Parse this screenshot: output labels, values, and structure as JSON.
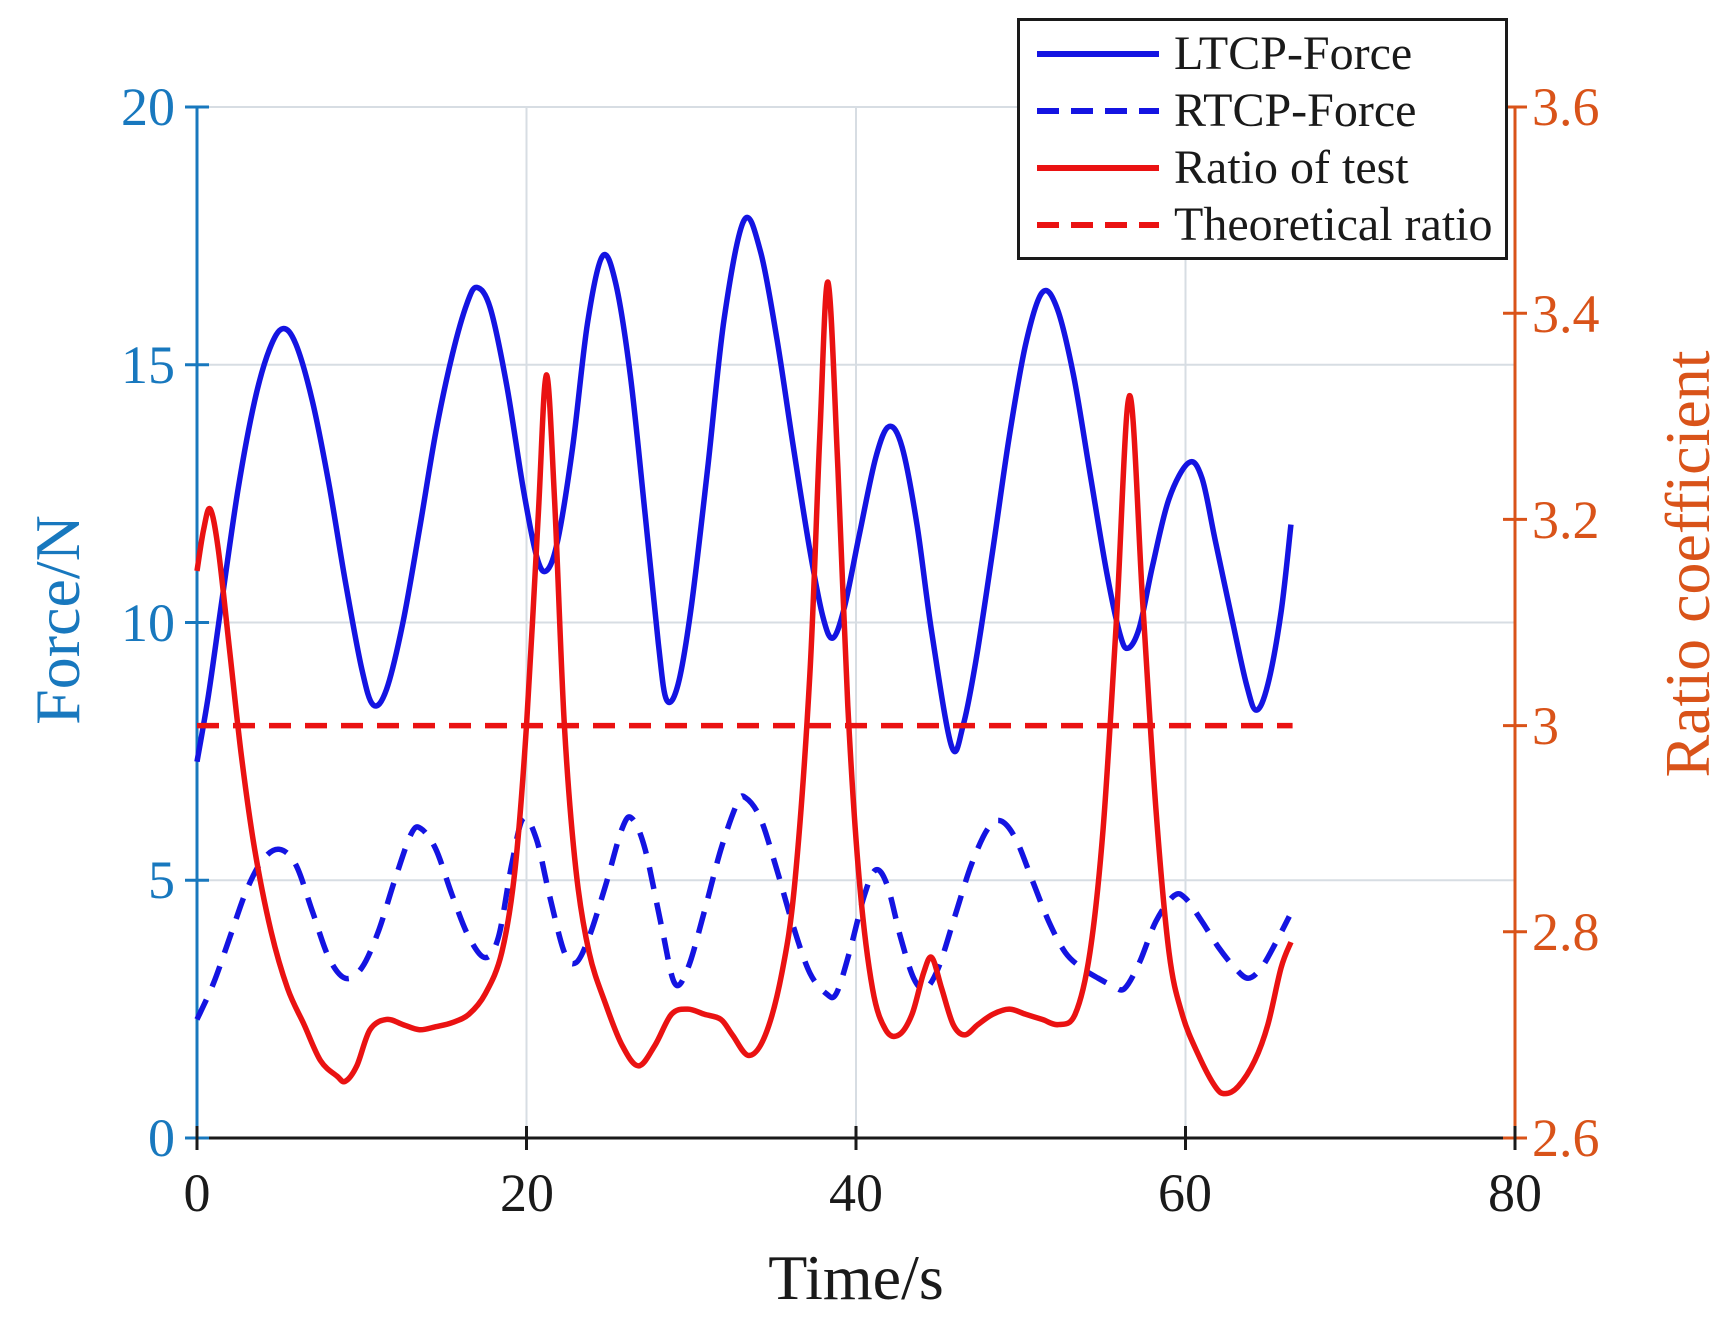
{
  "figure_title": "",
  "axis_labels": {
    "x": "Time/s",
    "y_left": "Force/N",
    "y_right": "Ratio coefficient"
  },
  "colors": {
    "ltcp_line": "#1414e2",
    "rtcp_line": "#1414e2",
    "ratio_line": "#ea1212",
    "theoretical_line": "#ea1212",
    "axis_left": "#1878be",
    "axis_right": "#d95319",
    "axis_bottom": "#1a1a1a",
    "grid": "#d7dde3",
    "background": "#ffffff"
  },
  "legend": {
    "entries": [
      {
        "label": "LTCP-Force",
        "color": "#1414e2",
        "style": "solid"
      },
      {
        "label": "RTCP-Force",
        "color": "#1414e2",
        "style": "dashed"
      },
      {
        "label": "Ratio of test",
        "color": "#ea1212",
        "style": "solid"
      },
      {
        "label": "Theoretical ratio",
        "color": "#ea1212",
        "style": "dashed"
      }
    ]
  },
  "chart_data": {
    "type": "line",
    "title": "",
    "xlabel": "Time/s",
    "ylabel_left": "Force/N",
    "ylabel_right": "Ratio coefficient",
    "grid": true,
    "legend_position": "top-right",
    "x_axis": {
      "min": 0,
      "max": 80,
      "ticks": [
        0,
        20,
        40,
        60,
        80
      ],
      "tick_labels": [
        "0",
        "20",
        "40",
        "60",
        "80"
      ]
    },
    "y_left_axis": {
      "min": 0,
      "max": 20,
      "ticks": [
        0,
        5,
        10,
        15,
        20
      ],
      "tick_labels": [
        "0",
        "5",
        "10",
        "15",
        "20"
      ]
    },
    "y_right_axis": {
      "min": 2.6,
      "max": 3.6,
      "ticks": [
        2.6,
        2.8,
        3.0,
        3.2,
        3.4,
        3.6
      ],
      "tick_labels": [
        "2.6",
        "2.8",
        "3",
        "3.2",
        "3.4",
        "3.6"
      ]
    },
    "series": [
      {
        "name": "LTCP-Force",
        "axis": "left",
        "style": "solid",
        "color": "#1414e2",
        "points": [
          [
            0,
            7.3
          ],
          [
            0.7,
            8.6
          ],
          [
            1.5,
            10.4
          ],
          [
            2.5,
            12.6
          ],
          [
            3.5,
            14.3
          ],
          [
            4.4,
            15.3
          ],
          [
            5.2,
            15.7
          ],
          [
            6,
            15.4
          ],
          [
            7,
            14.3
          ],
          [
            8,
            12.7
          ],
          [
            9,
            10.8
          ],
          [
            10,
            9.1
          ],
          [
            10.7,
            8.4
          ],
          [
            11.5,
            8.7
          ],
          [
            12.5,
            10.0
          ],
          [
            13.5,
            11.8
          ],
          [
            14.5,
            13.7
          ],
          [
            15.5,
            15.2
          ],
          [
            16.4,
            16.2
          ],
          [
            17,
            16.5
          ],
          [
            17.8,
            16.1
          ],
          [
            18.8,
            14.6
          ],
          [
            19.8,
            12.6
          ],
          [
            20.6,
            11.3
          ],
          [
            21.2,
            11.0
          ],
          [
            21.9,
            11.6
          ],
          [
            22.8,
            13.4
          ],
          [
            23.7,
            15.8
          ],
          [
            24.6,
            17.1
          ],
          [
            25.4,
            16.6
          ],
          [
            26.3,
            14.8
          ],
          [
            27.2,
            12.1
          ],
          [
            28,
            9.6
          ],
          [
            28.5,
            8.5
          ],
          [
            29.2,
            8.8
          ],
          [
            30,
            10.3
          ],
          [
            31,
            13.0
          ],
          [
            32,
            15.9
          ],
          [
            33.2,
            17.8
          ],
          [
            34.2,
            17.2
          ],
          [
            35.2,
            15.5
          ],
          [
            36.2,
            13.4
          ],
          [
            37.2,
            11.4
          ],
          [
            38,
            10.1
          ],
          [
            38.6,
            9.7
          ],
          [
            39.3,
            10.3
          ],
          [
            40.2,
            11.7
          ],
          [
            41.2,
            13.2
          ],
          [
            42,
            13.8
          ],
          [
            42.8,
            13.4
          ],
          [
            43.7,
            11.9
          ],
          [
            44.6,
            9.8
          ],
          [
            45.8,
            7.6
          ],
          [
            46.5,
            8.0
          ],
          [
            47.3,
            9.3
          ],
          [
            48.3,
            11.4
          ],
          [
            49.3,
            13.6
          ],
          [
            50.3,
            15.4
          ],
          [
            51.3,
            16.4
          ],
          [
            52.2,
            16.1
          ],
          [
            53.2,
            14.8
          ],
          [
            54.2,
            12.9
          ],
          [
            55.2,
            11.0
          ],
          [
            56,
            9.8
          ],
          [
            56.5,
            9.5
          ],
          [
            57.2,
            9.9
          ],
          [
            58,
            11.1
          ],
          [
            59,
            12.4
          ],
          [
            60.2,
            13.1
          ],
          [
            61,
            12.8
          ],
          [
            61.8,
            11.6
          ],
          [
            62.8,
            10.1
          ],
          [
            63.7,
            8.8
          ],
          [
            64.3,
            8.3
          ],
          [
            65,
            8.8
          ],
          [
            65.8,
            10.2
          ],
          [
            66.4,
            11.9
          ]
        ]
      },
      {
        "name": "RTCP-Force",
        "axis": "left",
        "style": "dashed",
        "color": "#1414e2",
        "points": [
          [
            0,
            2.3
          ],
          [
            1,
            3.0
          ],
          [
            2,
            3.9
          ],
          [
            3,
            4.8
          ],
          [
            4,
            5.4
          ],
          [
            5,
            5.6
          ],
          [
            6,
            5.3
          ],
          [
            7,
            4.4
          ],
          [
            8,
            3.5
          ],
          [
            9,
            3.1
          ],
          [
            10,
            3.3
          ],
          [
            11,
            4.0
          ],
          [
            12,
            5.0
          ],
          [
            13,
            5.9
          ],
          [
            13.6,
            6.0
          ],
          [
            14.5,
            5.6
          ],
          [
            15.5,
            4.7
          ],
          [
            16.5,
            3.9
          ],
          [
            17.5,
            3.5
          ],
          [
            18.3,
            3.9
          ],
          [
            19.1,
            5.3
          ],
          [
            19.8,
            6.2
          ],
          [
            20.6,
            5.8
          ],
          [
            21.4,
            4.7
          ],
          [
            22.3,
            3.6
          ],
          [
            23,
            3.4
          ],
          [
            23.8,
            3.9
          ],
          [
            24.8,
            4.9
          ],
          [
            25.8,
            6.0
          ],
          [
            26.4,
            6.2
          ],
          [
            27.2,
            5.6
          ],
          [
            28.2,
            4.1
          ],
          [
            29,
            3.0
          ],
          [
            29.8,
            3.3
          ],
          [
            30.8,
            4.4
          ],
          [
            31.8,
            5.6
          ],
          [
            32.8,
            6.5
          ],
          [
            33.3,
            6.6
          ],
          [
            34.2,
            6.2
          ],
          [
            35.2,
            5.2
          ],
          [
            36.2,
            4.1
          ],
          [
            37.2,
            3.2
          ],
          [
            38.2,
            2.8
          ],
          [
            38.8,
            2.8
          ],
          [
            39.6,
            3.6
          ],
          [
            40.5,
            4.7
          ],
          [
            41.2,
            5.2
          ],
          [
            41.9,
            4.9
          ],
          [
            42.7,
            3.9
          ],
          [
            43.5,
            3.1
          ],
          [
            44.2,
            2.9
          ],
          [
            45,
            3.3
          ],
          [
            46,
            4.3
          ],
          [
            47,
            5.3
          ],
          [
            48,
            6.0
          ],
          [
            48.8,
            6.15
          ],
          [
            49.7,
            5.8
          ],
          [
            50.7,
            5.0
          ],
          [
            51.7,
            4.2
          ],
          [
            52.7,
            3.6
          ],
          [
            53.7,
            3.3
          ],
          [
            54.7,
            3.1
          ],
          [
            55.6,
            2.95
          ],
          [
            56.3,
            2.9
          ],
          [
            57.2,
            3.4
          ],
          [
            58.2,
            4.2
          ],
          [
            59.3,
            4.7
          ],
          [
            60,
            4.65
          ],
          [
            61,
            4.2
          ],
          [
            62,
            3.7
          ],
          [
            63,
            3.3
          ],
          [
            63.8,
            3.1
          ],
          [
            64.6,
            3.3
          ],
          [
            65.5,
            3.8
          ],
          [
            66.3,
            4.3
          ]
        ]
      },
      {
        "name": "Ratio of test",
        "axis": "right",
        "style": "solid",
        "color": "#ea1212",
        "points": [
          [
            0,
            3.15
          ],
          [
            0.4,
            3.19
          ],
          [
            0.8,
            3.21
          ],
          [
            1.3,
            3.17
          ],
          [
            2,
            3.07
          ],
          [
            2.7,
            2.97
          ],
          [
            3.5,
            2.88
          ],
          [
            4.5,
            2.8
          ],
          [
            5.5,
            2.745
          ],
          [
            6.5,
            2.71
          ],
          [
            7.5,
            2.675
          ],
          [
            8.5,
            2.66
          ],
          [
            9,
            2.655
          ],
          [
            9.7,
            2.67
          ],
          [
            10.5,
            2.705
          ],
          [
            11.5,
            2.715
          ],
          [
            12.5,
            2.71
          ],
          [
            13.5,
            2.705
          ],
          [
            14.5,
            2.708
          ],
          [
            15.5,
            2.712
          ],
          [
            16.5,
            2.72
          ],
          [
            17.5,
            2.74
          ],
          [
            18.5,
            2.78
          ],
          [
            19.3,
            2.86
          ],
          [
            20,
            3.0
          ],
          [
            20.7,
            3.2
          ],
          [
            21.2,
            3.34
          ],
          [
            21.7,
            3.22
          ],
          [
            22.3,
            3.0
          ],
          [
            23,
            2.86
          ],
          [
            23.8,
            2.78
          ],
          [
            24.8,
            2.73
          ],
          [
            25.8,
            2.69
          ],
          [
            26.8,
            2.67
          ],
          [
            27.8,
            2.69
          ],
          [
            28.8,
            2.72
          ],
          [
            29.8,
            2.725
          ],
          [
            30.8,
            2.72
          ],
          [
            31.8,
            2.715
          ],
          [
            32.5,
            2.7
          ],
          [
            33.5,
            2.68
          ],
          [
            34.5,
            2.7
          ],
          [
            35.5,
            2.76
          ],
          [
            36.3,
            2.85
          ],
          [
            37.2,
            3.05
          ],
          [
            37.8,
            3.28
          ],
          [
            38.3,
            3.43
          ],
          [
            38.9,
            3.25
          ],
          [
            39.5,
            3.02
          ],
          [
            40.2,
            2.85
          ],
          [
            41,
            2.745
          ],
          [
            41.8,
            2.705
          ],
          [
            42.6,
            2.7
          ],
          [
            43.4,
            2.72
          ],
          [
            44.1,
            2.76
          ],
          [
            44.6,
            2.775
          ],
          [
            45.2,
            2.745
          ],
          [
            45.9,
            2.71
          ],
          [
            46.6,
            2.7
          ],
          [
            47.4,
            2.71
          ],
          [
            48.3,
            2.72
          ],
          [
            49.3,
            2.725
          ],
          [
            50.3,
            2.72
          ],
          [
            51.3,
            2.715
          ],
          [
            52.3,
            2.71
          ],
          [
            53.3,
            2.72
          ],
          [
            54.2,
            2.78
          ],
          [
            55,
            2.9
          ],
          [
            55.8,
            3.1
          ],
          [
            56.6,
            3.32
          ],
          [
            57.4,
            3.12
          ],
          [
            58.2,
            2.92
          ],
          [
            59,
            2.78
          ],
          [
            59.8,
            2.72
          ],
          [
            60.8,
            2.68
          ],
          [
            61.8,
            2.65
          ],
          [
            62.4,
            2.643
          ],
          [
            63.2,
            2.65
          ],
          [
            64.2,
            2.675
          ],
          [
            65,
            2.71
          ],
          [
            65.8,
            2.765
          ],
          [
            66.4,
            2.79
          ]
        ]
      },
      {
        "name": "Theoretical ratio",
        "axis": "right",
        "style": "dashed",
        "color": "#ea1212",
        "points": [
          [
            0,
            3.0
          ],
          [
            66.5,
            3.0
          ]
        ]
      }
    ]
  }
}
